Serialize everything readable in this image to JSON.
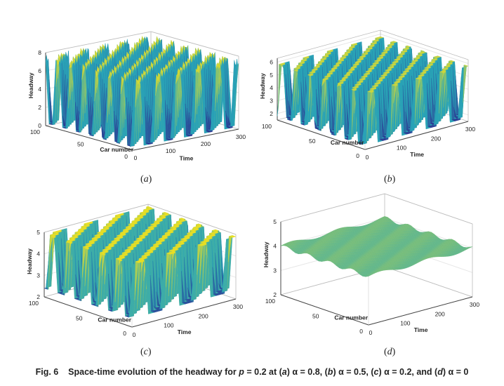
{
  "caption": {
    "fig_label": "Fig. 6",
    "text_before": "Space-time evolution of the headway for",
    "var_p": "p",
    "p_value": "= 0.2 at",
    "parts": [
      {
        "tag": "a",
        "alpha": "α = 0.8,"
      },
      {
        "tag": "b",
        "alpha": "α = 0.5,"
      },
      {
        "tag": "c",
        "alpha": "α = 0.2, and"
      },
      {
        "tag": "d",
        "alpha": "α = 0"
      }
    ]
  },
  "chart_data": [
    {
      "panel": "a",
      "type": "surface3d",
      "zlabel": "Headway",
      "xlabel": "Time",
      "ylabel": "Car number",
      "zticks": [
        "0",
        "2",
        "4",
        "6",
        "8"
      ],
      "xticks": [
        "0",
        "100",
        "200",
        "300"
      ],
      "yticks": [
        "0",
        "50",
        "100"
      ],
      "zlim": [
        0,
        8
      ],
      "xlim": [
        0,
        300
      ],
      "ylim": [
        0,
        100
      ],
      "pattern": "stop-and-go waves, headway oscillating between about 0 and 8"
    },
    {
      "panel": "b",
      "type": "surface3d",
      "zlabel": "Headway",
      "xlabel": "Time",
      "ylabel": "Car number",
      "zticks": [
        "2",
        "3",
        "4",
        "5",
        "6"
      ],
      "xticks": [
        "0",
        "100",
        "200",
        "300"
      ],
      "yticks": [
        "0",
        "50",
        "100"
      ],
      "zlim": [
        1.5,
        6.3
      ],
      "xlim": [
        0,
        300
      ],
      "ylim": [
        0,
        100
      ],
      "pattern": "stop-and-go waves, headway oscillating between about 1.7 and 6"
    },
    {
      "panel": "c",
      "type": "surface3d",
      "zlabel": "Headway",
      "xlabel": "Time",
      "ylabel": "Car number",
      "zticks": [
        "2",
        "3",
        "4",
        "5"
      ],
      "xticks": [
        "0",
        "100",
        "200",
        "300"
      ],
      "yticks": [
        "0",
        "50",
        "100"
      ],
      "zlim": [
        2,
        5
      ],
      "xlim": [
        0,
        300
      ],
      "ylim": [
        0,
        100
      ],
      "pattern": "kink-antikink waves, headway oscillating between about 2.3 and 5"
    },
    {
      "panel": "d",
      "type": "surface3d",
      "zlabel": "Headway",
      "xlabel": "Time",
      "ylabel": "Car number",
      "zticks": [
        "2",
        "3",
        "4",
        "5"
      ],
      "xticks": [
        "0",
        "100",
        "200",
        "300"
      ],
      "yticks": [
        "0",
        "50",
        "100"
      ],
      "zlim": [
        2,
        5
      ],
      "xlim": [
        0,
        300
      ],
      "ylim": [
        0,
        100
      ],
      "pattern": "small-amplitude density wave around headway 4"
    }
  ],
  "colors": {
    "surface_low": "#2b2f8f",
    "surface_mid": "#2aa7b8",
    "surface_high": "#f5e21b",
    "axis": "#444444",
    "grid": "#e6e6e6"
  }
}
